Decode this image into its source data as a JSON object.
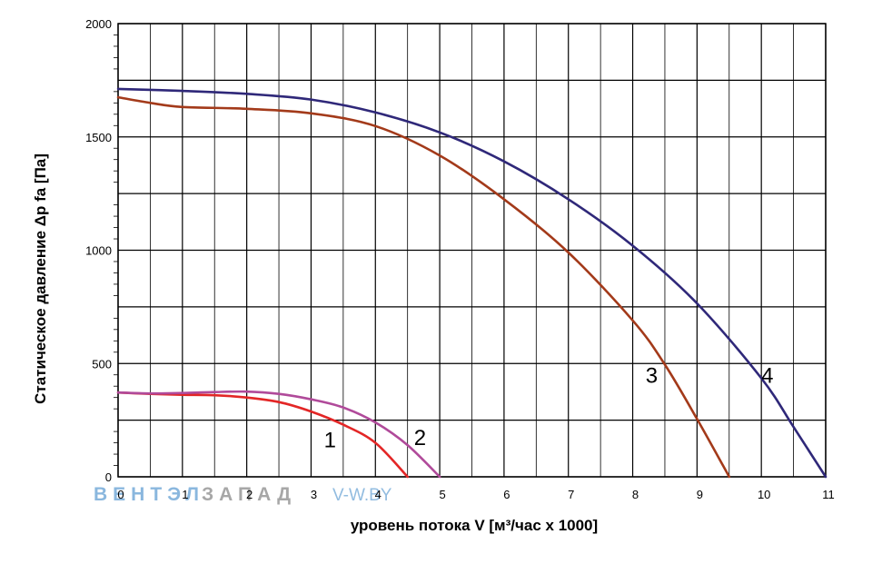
{
  "chart_data": {
    "type": "line",
    "title": "",
    "xlabel": "уровень потока  V [м³/час x 1000]",
    "ylabel": "Статическое давление  Δp fa [Па]",
    "xlim": [
      0,
      11
    ],
    "ylim": [
      0,
      2000
    ],
    "x_ticks": [
      "0",
      "1",
      "2",
      "3",
      "4",
      "5",
      "6",
      "7",
      "8",
      "9",
      "10",
      "11"
    ],
    "y_ticks": [
      "0",
      "500",
      "1000",
      "1500",
      "2000"
    ],
    "grid": true,
    "series": [
      {
        "name": "1",
        "color": "#e32626",
        "label_at": [
          3.2,
          130
        ],
        "points": [
          [
            0,
            372
          ],
          [
            0.5,
            366
          ],
          [
            1.0,
            362
          ],
          [
            1.5,
            360
          ],
          [
            2.0,
            350
          ],
          [
            2.5,
            330
          ],
          [
            3.0,
            288
          ],
          [
            3.5,
            230
          ],
          [
            4.0,
            150
          ],
          [
            4.5,
            0
          ]
        ]
      },
      {
        "name": "2",
        "color": "#b04a9a",
        "label_at": [
          4.6,
          140
        ],
        "points": [
          [
            0,
            372
          ],
          [
            0.5,
            368
          ],
          [
            1.0,
            370
          ],
          [
            1.5,
            374
          ],
          [
            2.0,
            376
          ],
          [
            2.5,
            366
          ],
          [
            3.0,
            342
          ],
          [
            3.5,
            306
          ],
          [
            4.0,
            240
          ],
          [
            4.5,
            140
          ],
          [
            5.0,
            0
          ]
        ]
      },
      {
        "name": "3",
        "color": "#a33a1a",
        "label_at": [
          8.2,
          415
        ],
        "points": [
          [
            0,
            1675
          ],
          [
            0.5,
            1650
          ],
          [
            1.0,
            1632
          ],
          [
            2.0,
            1624
          ],
          [
            3.0,
            1604
          ],
          [
            4.0,
            1548
          ],
          [
            5.0,
            1418
          ],
          [
            6.0,
            1225
          ],
          [
            7.0,
            990
          ],
          [
            8.0,
            690
          ],
          [
            8.5,
            495
          ],
          [
            9.0,
            255
          ],
          [
            9.5,
            0
          ]
        ]
      },
      {
        "name": "4",
        "color": "#2f2879",
        "label_at": [
          10.0,
          415
        ],
        "points": [
          [
            0,
            1712
          ],
          [
            1.0,
            1703
          ],
          [
            2.0,
            1690
          ],
          [
            3.0,
            1665
          ],
          [
            4.0,
            1608
          ],
          [
            5.0,
            1520
          ],
          [
            6.0,
            1392
          ],
          [
            7.0,
            1225
          ],
          [
            8.0,
            1020
          ],
          [
            9.0,
            765
          ],
          [
            10.0,
            435
          ],
          [
            10.5,
            220
          ],
          [
            11.0,
            0
          ]
        ]
      }
    ]
  },
  "watermark": {
    "brand_part1": "ВЕНТЭЛ",
    "brand_part2": "ЗАПАД",
    "site": "V-W.BY",
    "color_part1": "#6ea6d6",
    "color_part2": "#8a8a8a"
  }
}
